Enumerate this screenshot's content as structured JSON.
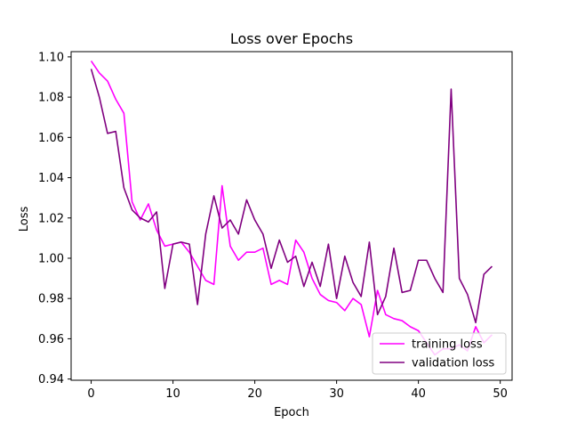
{
  "chart_data": {
    "type": "line",
    "title": "Loss over Epochs",
    "xlabel": "Epoch",
    "ylabel": "Loss",
    "xlim": [
      -2.45,
      51.45
    ],
    "ylim": [
      0.9394,
      1.1026
    ],
    "xticks": [
      0,
      10,
      20,
      30,
      40,
      50
    ],
    "yticks": [
      0.94,
      0.96,
      0.98,
      1.0,
      1.02,
      1.04,
      1.06,
      1.08,
      1.1
    ],
    "ytick_labels": [
      "0.94",
      "0.96",
      "0.98",
      "1.00",
      "1.02",
      "1.04",
      "1.06",
      "1.08",
      "1.10"
    ],
    "xtick_labels": [
      "0",
      "10",
      "20",
      "30",
      "40",
      "50"
    ],
    "grid": false,
    "legend_position": "lower right",
    "x": [
      0,
      1,
      2,
      3,
      4,
      5,
      6,
      7,
      8,
      9,
      10,
      11,
      12,
      13,
      14,
      15,
      16,
      17,
      18,
      19,
      20,
      21,
      22,
      23,
      24,
      25,
      26,
      27,
      28,
      29,
      30,
      31,
      32,
      33,
      34,
      35,
      36,
      37,
      38,
      39,
      40,
      41,
      42,
      43,
      44,
      45,
      46,
      47,
      48,
      49
    ],
    "series": [
      {
        "name": "training loss",
        "color": "#ff00ff",
        "values": [
          1.098,
          1.092,
          1.088,
          1.079,
          1.072,
          1.028,
          1.019,
          1.027,
          1.014,
          1.006,
          1.007,
          1.008,
          1.003,
          0.996,
          0.989,
          0.987,
          1.036,
          1.006,
          0.999,
          1.003,
          1.003,
          1.005,
          0.987,
          0.989,
          0.987,
          1.009,
          1.003,
          0.99,
          0.982,
          0.979,
          0.978,
          0.974,
          0.98,
          0.977,
          0.961,
          0.984,
          0.972,
          0.97,
          0.969,
          0.966,
          0.964,
          0.958,
          0.952,
          0.955,
          0.955,
          0.957,
          0.954,
          0.966,
          0.958,
          0.962
        ]
      },
      {
        "name": "validation loss",
        "color": "#800080",
        "values": [
          1.094,
          1.08,
          1.062,
          1.063,
          1.035,
          1.024,
          1.02,
          1.018,
          1.023,
          0.985,
          1.007,
          1.008,
          1.007,
          0.977,
          1.012,
          1.031,
          1.015,
          1.019,
          1.012,
          1.029,
          1.019,
          1.012,
          0.995,
          1.009,
          0.998,
          1.001,
          0.986,
          0.998,
          0.986,
          1.007,
          0.98,
          1.001,
          0.988,
          0.981,
          1.008,
          0.972,
          0.981,
          1.005,
          0.983,
          0.984,
          0.999,
          0.999,
          0.99,
          0.983,
          1.084,
          0.99,
          0.982,
          0.968,
          0.992,
          0.996
        ]
      }
    ]
  }
}
